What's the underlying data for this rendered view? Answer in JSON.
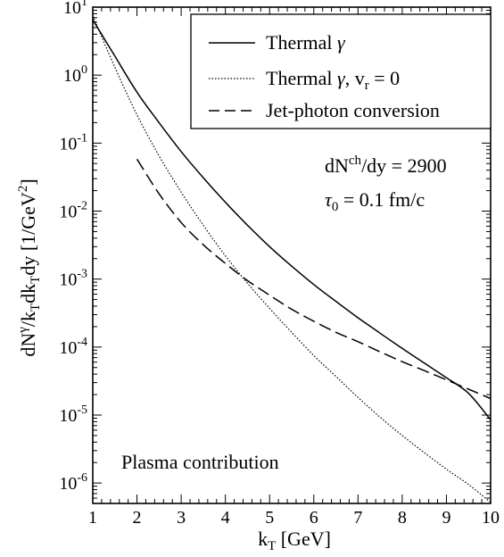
{
  "chart_data": {
    "type": "line",
    "xlabel_main": "k",
    "xlabel_sub": "T",
    "xlabel_rest": " [GeV]",
    "xlim": [
      1,
      10
    ],
    "ylim_log10": [
      -6.3,
      1
    ],
    "yscale": "log",
    "x_ticks": [
      "1",
      "2",
      "3",
      "4",
      "5",
      "6",
      "7",
      "8",
      "9",
      "10"
    ],
    "y_ticks_exp": [
      "1",
      "0",
      "-1",
      "-2",
      "-3",
      "-4",
      "-5",
      "-6"
    ],
    "y_tick_base": "10",
    "ylabel_parts": {
      "a": "dN",
      "sup1": "γ",
      "b": "/k",
      "sub1": "T",
      "c": "dk",
      "sub2": "T",
      "d": "dy [1/GeV",
      "sup2": "2",
      "e": "]"
    },
    "legend": {
      "placement": "top-right",
      "entries": [
        {
          "style": "solid",
          "label": "Thermal ",
          "label_italic": "γ",
          "label_rest": ""
        },
        {
          "style": "dotted",
          "label": "Thermal ",
          "label_italic": "γ",
          "label_rest": ", v",
          "label_sub": "r",
          "label_tail": " = 0"
        },
        {
          "style": "dashed",
          "label": "Jet-photon conversion",
          "label_italic": "",
          "label_rest": ""
        }
      ]
    },
    "annotations": {
      "dn_a": "dN",
      "dn_sup": "ch",
      "dn_b": "/dy = 2900",
      "tau_sym": "τ",
      "tau_sub": "0",
      "tau_b": " = 0.1 fm/c",
      "plasma": "Plasma contribution"
    },
    "series": [
      {
        "style": "solid",
        "x": [
          1,
          1.5,
          2,
          2.5,
          3,
          3.5,
          4,
          4.5,
          5,
          5.5,
          6,
          6.5,
          7,
          7.5,
          8,
          8.5,
          9,
          9.5,
          10
        ],
        "y": [
          6.5,
          1.9,
          0.56,
          0.2,
          0.075,
          0.031,
          0.0135,
          0.0062,
          0.003,
          0.00155,
          0.00083,
          0.00047,
          0.00027,
          0.00016,
          9.55e-05,
          5.8e-05,
          3.55e-05,
          2.09e-05,
          8.5e-06
        ]
      },
      {
        "style": "dotted",
        "x": [
          1,
          1.5,
          2,
          2.5,
          3,
          3.5,
          4,
          4.5,
          5,
          5.5,
          6,
          6.5,
          7,
          7.5,
          8,
          8.5,
          9,
          9.5,
          10
        ],
        "y": [
          7.5,
          1.3,
          0.26,
          0.065,
          0.019,
          0.0062,
          0.0022,
          0.00087,
          0.00037,
          0.000165,
          7.5e-05,
          3.7e-05,
          1.82e-05,
          9.3e-06,
          5e-06,
          2.8e-06,
          1.6e-06,
          9.5e-07,
          5.2e-07
        ]
      },
      {
        "style": "dashed",
        "x": [
          2,
          2.5,
          3,
          3.5,
          4,
          4.5,
          5,
          5.5,
          6,
          6.5,
          7,
          7.5,
          8,
          8.5,
          9,
          9.5,
          10
        ],
        "y": [
          0.058,
          0.018,
          0.0068,
          0.0032,
          0.0017,
          0.00095,
          0.00058,
          0.00036,
          0.00024,
          0.000165,
          0.00012,
          8.5e-05,
          6.1e-05,
          4.5e-05,
          3.3e-05,
          2.4e-05,
          1.75e-05
        ]
      }
    ]
  }
}
